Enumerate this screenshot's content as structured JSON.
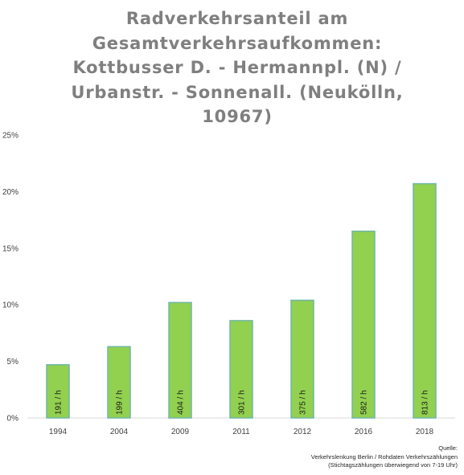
{
  "chart_data": {
    "type": "bar",
    "title": "Radverkehrsanteil am Gesamtverkehrsaufkommen: Kottbusser D. - Hermannpl. (N) / Urbanstr. - Sonnenall.   (Neukölln, 10967)",
    "categories": [
      "1994",
      "2004",
      "2009",
      "2011",
      "2012",
      "2016",
      "2018"
    ],
    "values": [
      0.047,
      0.063,
      0.102,
      0.086,
      0.104,
      0.165,
      0.207
    ],
    "data_labels": [
      "191 / h",
      "199 / h",
      "404 / h",
      "301 / h",
      "375 / h",
      "582 / h",
      "813 / h"
    ],
    "y_ticks": [
      "0%",
      "5%",
      "10%",
      "15%",
      "20%",
      "25%"
    ],
    "ylim": [
      0,
      0.25
    ],
    "grid": false,
    "legend": "none",
    "bar_color": "#92d050",
    "bar_edge_color": "#6fb7a5",
    "source": {
      "heading": "Quelle:",
      "line1": "Verkehrslenkung Berlin / Rohdaten Verkehrszählungen",
      "line2": "(Stichtagszählungen überwiegend von 7-19 Uhr)"
    }
  }
}
